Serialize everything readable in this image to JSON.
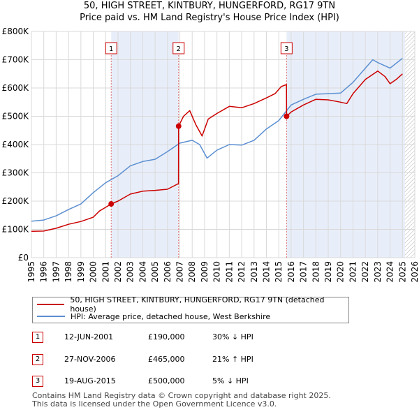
{
  "chart_data": {
    "type": "line",
    "title": "50, HIGH STREET, KINTBURY, HUNGERFORD, RG17 9TN",
    "subtitle": "Price paid vs. HM Land Registry's House Price Index (HPI)",
    "xlabel": "",
    "ylabel": "",
    "xlim": [
      1995,
      2026
    ],
    "ylim": [
      0,
      800000
    ],
    "x_ticks": [
      "1995",
      "1996",
      "1997",
      "1998",
      "1999",
      "2000",
      "2001",
      "2002",
      "2003",
      "2004",
      "2005",
      "2006",
      "2007",
      "2008",
      "2009",
      "2010",
      "2011",
      "2012",
      "2013",
      "2014",
      "2015",
      "2016",
      "2017",
      "2018",
      "2019",
      "2020",
      "2021",
      "2022",
      "2023",
      "2024",
      "2025",
      "2026"
    ],
    "y_ticks": [
      {
        "value": 0,
        "label": "£0"
      },
      {
        "value": 100000,
        "label": "£100K"
      },
      {
        "value": 200000,
        "label": "£200K"
      },
      {
        "value": 300000,
        "label": "£300K"
      },
      {
        "value": 400000,
        "label": "£400K"
      },
      {
        "value": 500000,
        "label": "£500K"
      },
      {
        "value": 600000,
        "label": "£600K"
      },
      {
        "value": 700000,
        "label": "£700K"
      },
      {
        "value": 800000,
        "label": "£800K"
      }
    ],
    "shaded_periods": [
      [
        2001.45,
        2006.9
      ],
      [
        2015.63,
        2025.2
      ]
    ],
    "future_hatch_start": 2025.2,
    "series": [
      {
        "name": "50, HIGH STREET, KINTBURY, HUNGERFORD, RG17 9TN (detached house)",
        "color": "#cc0000",
        "x": [
          1995,
          1996,
          1997,
          1998,
          1999,
          2000,
          2000.5,
          2001,
          2001.45,
          2002,
          2003,
          2004,
          2005,
          2006,
          2006.89,
          2006.9,
          2007.3,
          2007.8,
          2008.3,
          2008.8,
          2009.3,
          2010,
          2011,
          2012,
          2013,
          2014,
          2014.7,
          2015.2,
          2015.62,
          2015.63,
          2016,
          2017,
          2018,
          2019,
          2020,
          2020.5,
          2021,
          2022,
          2023,
          2023.6,
          2024,
          2024.5,
          2025
        ],
        "y": [
          93000,
          94000,
          104000,
          118000,
          128000,
          143000,
          165000,
          178000,
          190000,
          200000,
          225000,
          235000,
          238000,
          242000,
          262000,
          465000,
          500000,
          520000,
          470000,
          430000,
          490000,
          510000,
          535000,
          530000,
          545000,
          565000,
          580000,
          605000,
          612000,
          500000,
          515000,
          540000,
          560000,
          558000,
          550000,
          545000,
          580000,
          630000,
          660000,
          640000,
          615000,
          630000,
          650000
        ]
      },
      {
        "name": "HPI: Average price, detached house, West Berkshire",
        "color": "#5b8fd1",
        "x": [
          1995,
          1996,
          1997,
          1998,
          1999,
          2000,
          2001,
          2002,
          2003,
          2004,
          2005,
          2006,
          2007,
          2008,
          2008.6,
          2009.2,
          2010,
          2011,
          2012,
          2013,
          2014,
          2015,
          2016,
          2017,
          2018,
          2019,
          2020,
          2021,
          2022,
          2022.6,
          2023,
          2024,
          2025
        ],
        "y": [
          129000,
          133000,
          148000,
          170000,
          190000,
          230000,
          265000,
          290000,
          325000,
          340000,
          348000,
          375000,
          405000,
          415000,
          400000,
          352000,
          380000,
          400000,
          398000,
          415000,
          455000,
          485000,
          540000,
          560000,
          578000,
          580000,
          582000,
          620000,
          670000,
          700000,
          690000,
          670000,
          705000
        ]
      }
    ],
    "sales": [
      {
        "marker": "1",
        "x": 2001.45,
        "price": 190000,
        "date": "12-JUN-2001",
        "price_label": "£190,000",
        "hpi_label": "30% ↓ HPI"
      },
      {
        "marker": "2",
        "x": 2006.9,
        "price": 465000,
        "date": "27-NOV-2006",
        "price_label": "£465,000",
        "hpi_label": "21% ↑ HPI"
      },
      {
        "marker": "3",
        "x": 2015.63,
        "price": 500000,
        "date": "19-AUG-2015",
        "price_label": "£500,000",
        "hpi_label": "5% ↓ HPI"
      }
    ],
    "footer_lines": [
      "Contains HM Land Registry data © Crown copyright and database right 2025.",
      "This data is licensed under the Open Government Licence v3.0."
    ]
  }
}
